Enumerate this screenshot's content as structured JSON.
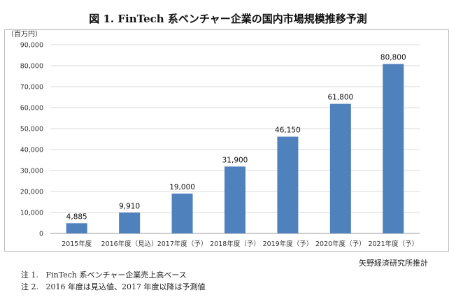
{
  "title": "図 1. FinTech 系ベンチャー企業の国内市場規模推移予測",
  "source": "矢野経済研究所推計",
  "notes": [
    "注 1.   FinTech 系ベンチャー企業売上高ベース",
    "注 2.   2016 年度は見込値、2017 年度以降は予測値"
  ],
  "chart_data": {
    "type": "bar",
    "title": "図 1. FinTech 系ベンチャー企業の国内市場規模推移予測",
    "ylabel": "（百万円）",
    "xlabel": "",
    "categories": [
      "2015年度",
      "2016年度（見込）",
      "2017年度（予）",
      "2018年度（予）",
      "2019年度（予）",
      "2020年度（予）",
      "2021年度（予）"
    ],
    "values": [
      4885,
      9910,
      19000,
      31900,
      46150,
      61800,
      80800
    ],
    "data_labels": [
      "4,885",
      "9,910",
      "19,000",
      "31,900",
      "46,150",
      "61,800",
      "80,800"
    ],
    "ylim": [
      0,
      90000
    ],
    "yticks": [
      0,
      10000,
      20000,
      30000,
      40000,
      50000,
      60000,
      70000,
      80000,
      90000
    ],
    "ytick_labels": [
      "0",
      "10,000",
      "20,000",
      "30,000",
      "40,000",
      "50,000",
      "60,000",
      "70,000",
      "80,000",
      "90,000"
    ],
    "grid": true,
    "legend": "none",
    "colors": {
      "bar": "#4f81bd",
      "grid": "#d9d9d9"
    }
  }
}
